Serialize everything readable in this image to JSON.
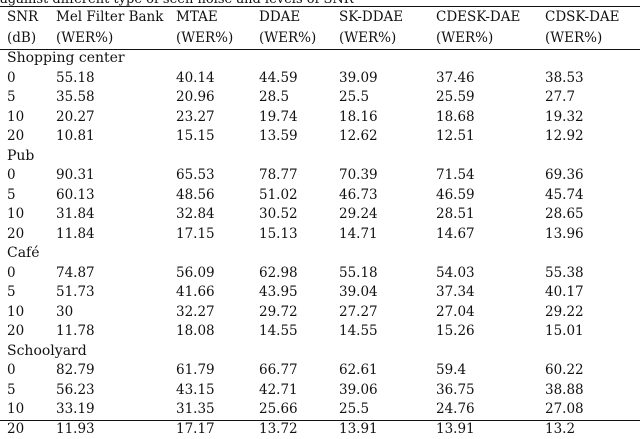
{
  "caption": "against different type of seen noise and levels of SNR",
  "headers": [
    [
      "SNR",
      "(dB)"
    ],
    [
      "Mel Filter Bank",
      "(WER%)"
    ],
    [
      "MTAE",
      "(WER%)"
    ],
    [
      "DDAE",
      "(WER%)"
    ],
    [
      "SK-DDAE",
      "(WER%)"
    ],
    [
      "CDESK-DAE",
      "(WER%)"
    ],
    [
      "CDSK-DAE",
      "(WER%)"
    ]
  ],
  "groups": [
    {
      "name": "Shopping center",
      "rows": [
        [
          "0",
          "55.18",
          "40.14",
          "44.59",
          "39.09",
          "37.46",
          "38.53"
        ],
        [
          "5",
          "35.58",
          "20.96",
          "28.5",
          "25.5",
          "25.59",
          "27.7"
        ],
        [
          "10",
          "20.27",
          "23.27",
          "19.74",
          "18.16",
          "18.68",
          "19.32"
        ],
        [
          "20",
          "10.81",
          "15.15",
          "13.59",
          "12.62",
          "12.51",
          "12.92"
        ]
      ]
    },
    {
      "name": "Pub",
      "rows": [
        [
          "0",
          "90.31",
          "65.53",
          "78.77",
          "70.39",
          "71.54",
          "69.36"
        ],
        [
          "5",
          "60.13",
          "48.56",
          "51.02",
          "46.73",
          "46.59",
          "45.74"
        ],
        [
          "10",
          "31.84",
          "32.84",
          "30.52",
          "29.24",
          "28.51",
          "28.65"
        ],
        [
          "20",
          "11.84",
          "17.15",
          "15.13",
          "14.71",
          "14.67",
          "13.96"
        ]
      ]
    },
    {
      "name": "Café",
      "rows": [
        [
          "0",
          "74.87",
          "56.09",
          "62.98",
          "55.18",
          "54.03",
          "55.38"
        ],
        [
          "5",
          "51.73",
          "41.66",
          "43.95",
          "39.04",
          "37.34",
          "40.17"
        ],
        [
          "10",
          "30",
          "32.27",
          "29.72",
          "27.27",
          "27.04",
          "29.22"
        ],
        [
          "20",
          "11.78",
          "18.08",
          "14.55",
          "14.55",
          "15.26",
          "15.01"
        ]
      ]
    },
    {
      "name": "Schoolyard",
      "rows": [
        [
          "0",
          "82.79",
          "61.79",
          "66.77",
          "62.61",
          "59.4",
          "60.22"
        ],
        [
          "5",
          "56.23",
          "43.15",
          "42.71",
          "39.06",
          "36.75",
          "38.88"
        ],
        [
          "10",
          "33.19",
          "31.35",
          "25.66",
          "25.5",
          "24.76",
          "27.08"
        ],
        [
          "20",
          "11.93",
          "17.17",
          "13.72",
          "13.91",
          "13.91",
          "13.2"
        ]
      ]
    }
  ]
}
